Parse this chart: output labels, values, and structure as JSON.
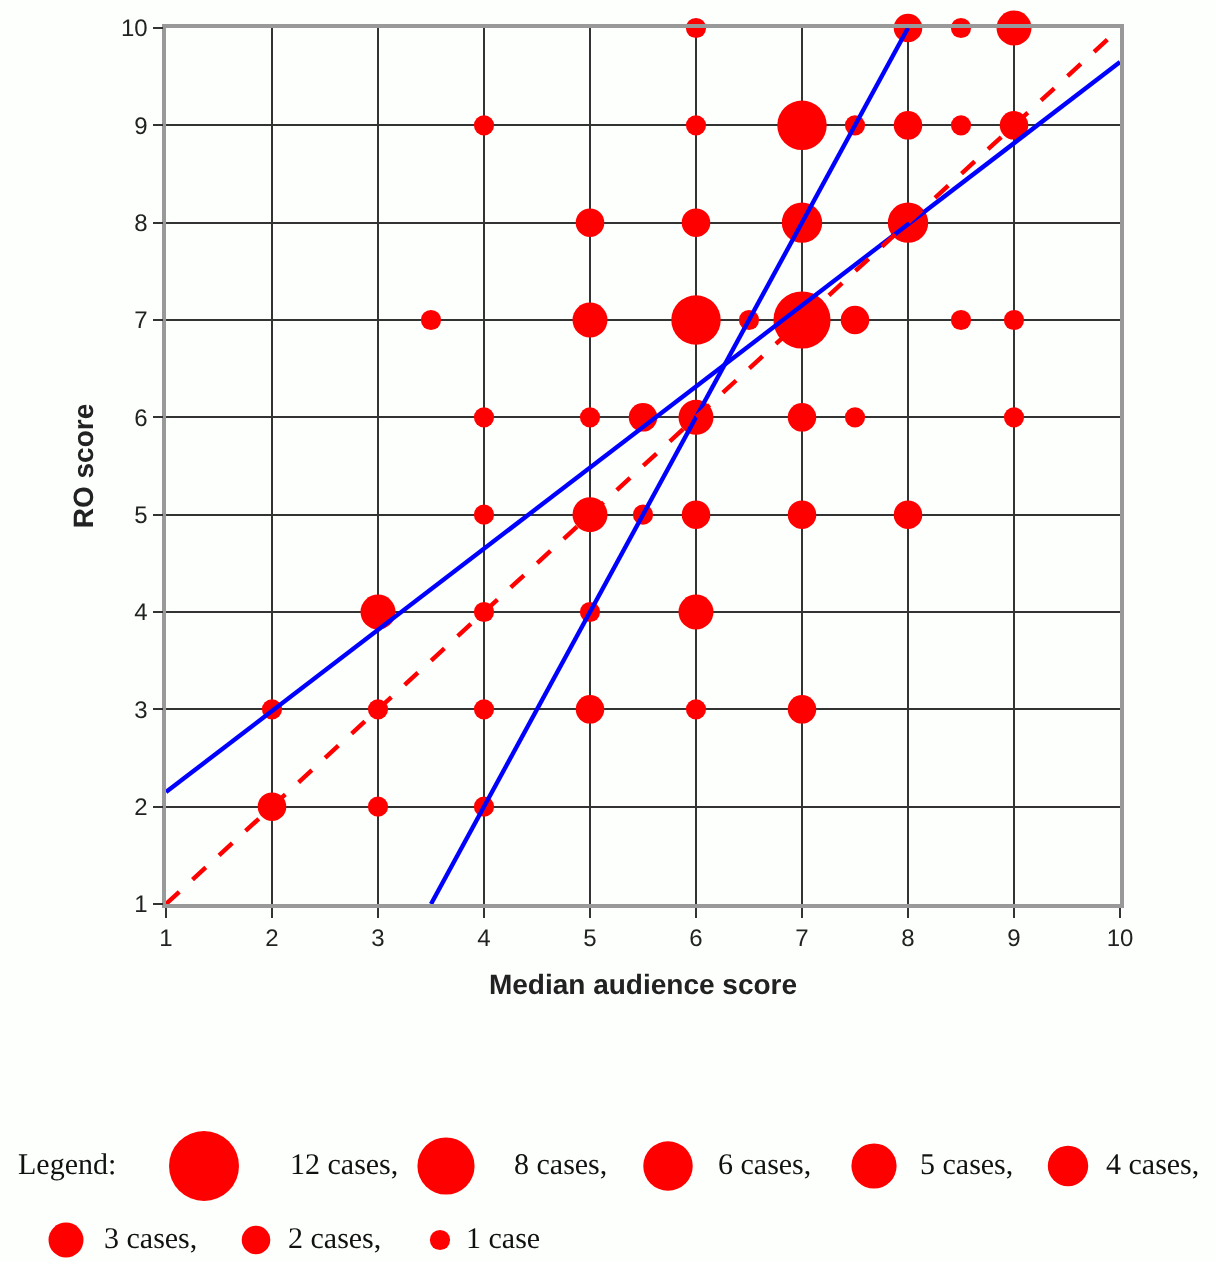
{
  "chart_data": {
    "type": "bubble",
    "xlabel": "Median audience score",
    "ylabel": "RO score",
    "legend_title": "Legend:",
    "xlim": [
      1,
      10
    ],
    "ylim": [
      1,
      10
    ],
    "xticks": [
      1,
      2,
      3,
      4,
      5,
      6,
      7,
      8,
      9,
      10
    ],
    "yticks": [
      1,
      2,
      3,
      4,
      5,
      6,
      7,
      8,
      9,
      10
    ],
    "grid": true,
    "size_legend": [
      {
        "value": 12,
        "label": "12 cases,"
      },
      {
        "value": 8,
        "label": "8 cases,"
      },
      {
        "value": 6,
        "label": "6 cases,"
      },
      {
        "value": 5,
        "label": "5 cases,"
      },
      {
        "value": 4,
        "label": "4 cases,"
      },
      {
        "value": 3,
        "label": "3 cases,"
      },
      {
        "value": 2,
        "label": "2 cases,"
      },
      {
        "value": 1,
        "label": "1 case"
      }
    ],
    "series": [
      {
        "color": "#ff0000",
        "marker": "circle",
        "x": [
          6,
          8,
          8.5,
          9,
          4,
          6,
          7,
          7.5,
          8,
          8.5,
          9,
          5,
          6,
          7,
          8,
          3.5,
          5,
          6,
          6.5,
          7,
          7.5,
          8.5,
          9,
          4,
          5,
          5.5,
          6,
          7,
          7.5,
          9,
          4,
          5,
          5.5,
          6,
          7,
          8,
          3,
          4,
          5,
          6,
          2,
          3,
          4,
          5,
          6,
          7,
          2,
          3,
          4
        ],
        "values": [
          10,
          10,
          10,
          10,
          9,
          9,
          9,
          9,
          9,
          9,
          9,
          8,
          8,
          8,
          8,
          7,
          7,
          7,
          7,
          7,
          7,
          7,
          7,
          6,
          6,
          6,
          6,
          6,
          6,
          6,
          5,
          5,
          5,
          5,
          5,
          5,
          4,
          4,
          4,
          4,
          3,
          3,
          3,
          3,
          3,
          3,
          2,
          2,
          2
        ],
        "sizes": [
          1,
          2,
          1,
          3,
          1,
          1,
          6,
          1,
          2,
          1,
          2,
          2,
          2,
          4,
          4,
          1,
          3,
          6,
          1,
          8,
          2,
          1,
          1,
          1,
          1,
          2,
          3,
          2,
          1,
          1,
          1,
          3,
          1,
          2,
          2,
          2,
          3,
          1,
          1,
          3,
          1,
          1,
          1,
          2,
          1,
          2,
          2,
          1,
          1
        ]
      },
      {
        "type": "line",
        "color": "#0000ff",
        "line_style": "solid",
        "x": [
          1,
          10
        ],
        "values": [
          2.15,
          9.65
        ]
      },
      {
        "type": "line",
        "color": "#0000ff",
        "line_style": "solid",
        "x": [
          3.5,
          8
        ],
        "values": [
          1,
          10
        ]
      },
      {
        "type": "line",
        "color": "#ff0000",
        "line_style": "dashed",
        "x": [
          1,
          10
        ],
        "values": [
          1,
          10
        ]
      }
    ]
  }
}
